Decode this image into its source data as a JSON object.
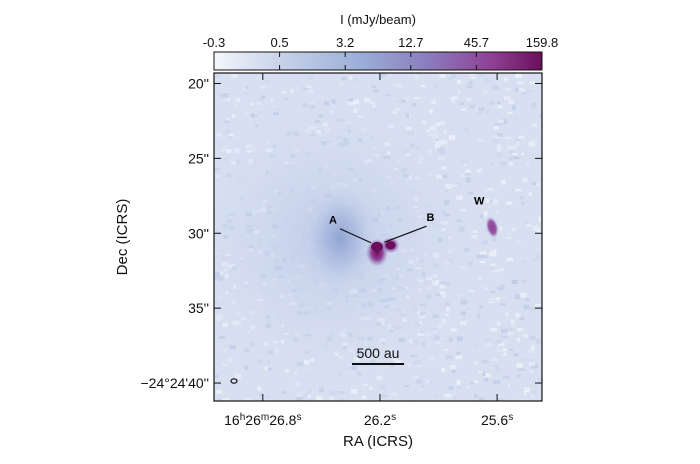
{
  "chart_data": {
    "type": "heatmap",
    "colorbar": {
      "title": "I (mJy/beam)",
      "ticks": [
        "-0.3",
        "0.5",
        "3.2",
        "12.7",
        "45.7",
        "159.8"
      ],
      "colors": [
        "#f4f6fb",
        "#c9d3ea",
        "#9aaed8",
        "#8b7dbd",
        "#8f3f93",
        "#6a0f5c"
      ]
    },
    "xlabel": "RA (ICRS)",
    "ylabel": "Dec (ICRS)",
    "x_ticks": [
      {
        "value_s": 26.8,
        "h": "16",
        "m": "26",
        "s": "26.8",
        "sup_h": "h",
        "sup_m": "m",
        "sup_s": "s"
      },
      {
        "value_s": 26.2,
        "s": "26.2",
        "sup_s": "s"
      },
      {
        "value_s": 25.6,
        "s": "25.6",
        "sup_s": "s"
      }
    ],
    "y_ticks": [
      {
        "value_arcsec": 20,
        "label": "20''"
      },
      {
        "value_arcsec": 25,
        "label": "25''"
      },
      {
        "value_arcsec": 30,
        "label": "30''"
      },
      {
        "value_arcsec": 35,
        "label": "35''"
      },
      {
        "value_arcsec": 40,
        "label": "−24°24'40''"
      }
    ],
    "x_range_s": [
      27.05,
      25.37
    ],
    "y_range_arcsec": [
      19.3,
      41.2
    ],
    "sources": [
      {
        "name": "A",
        "ra_s": 26.215,
        "dec_arcsec": 30.9,
        "peak_mJy": 159.8
      },
      {
        "name": "B",
        "ra_s": 26.146,
        "dec_arcsec": 30.8,
        "peak_mJy": 120
      },
      {
        "name": "W",
        "ra_s": 25.625,
        "dec_arcsec": 29.6,
        "peak_mJy": 60
      }
    ],
    "scale_bar": {
      "label": "500 au"
    }
  }
}
